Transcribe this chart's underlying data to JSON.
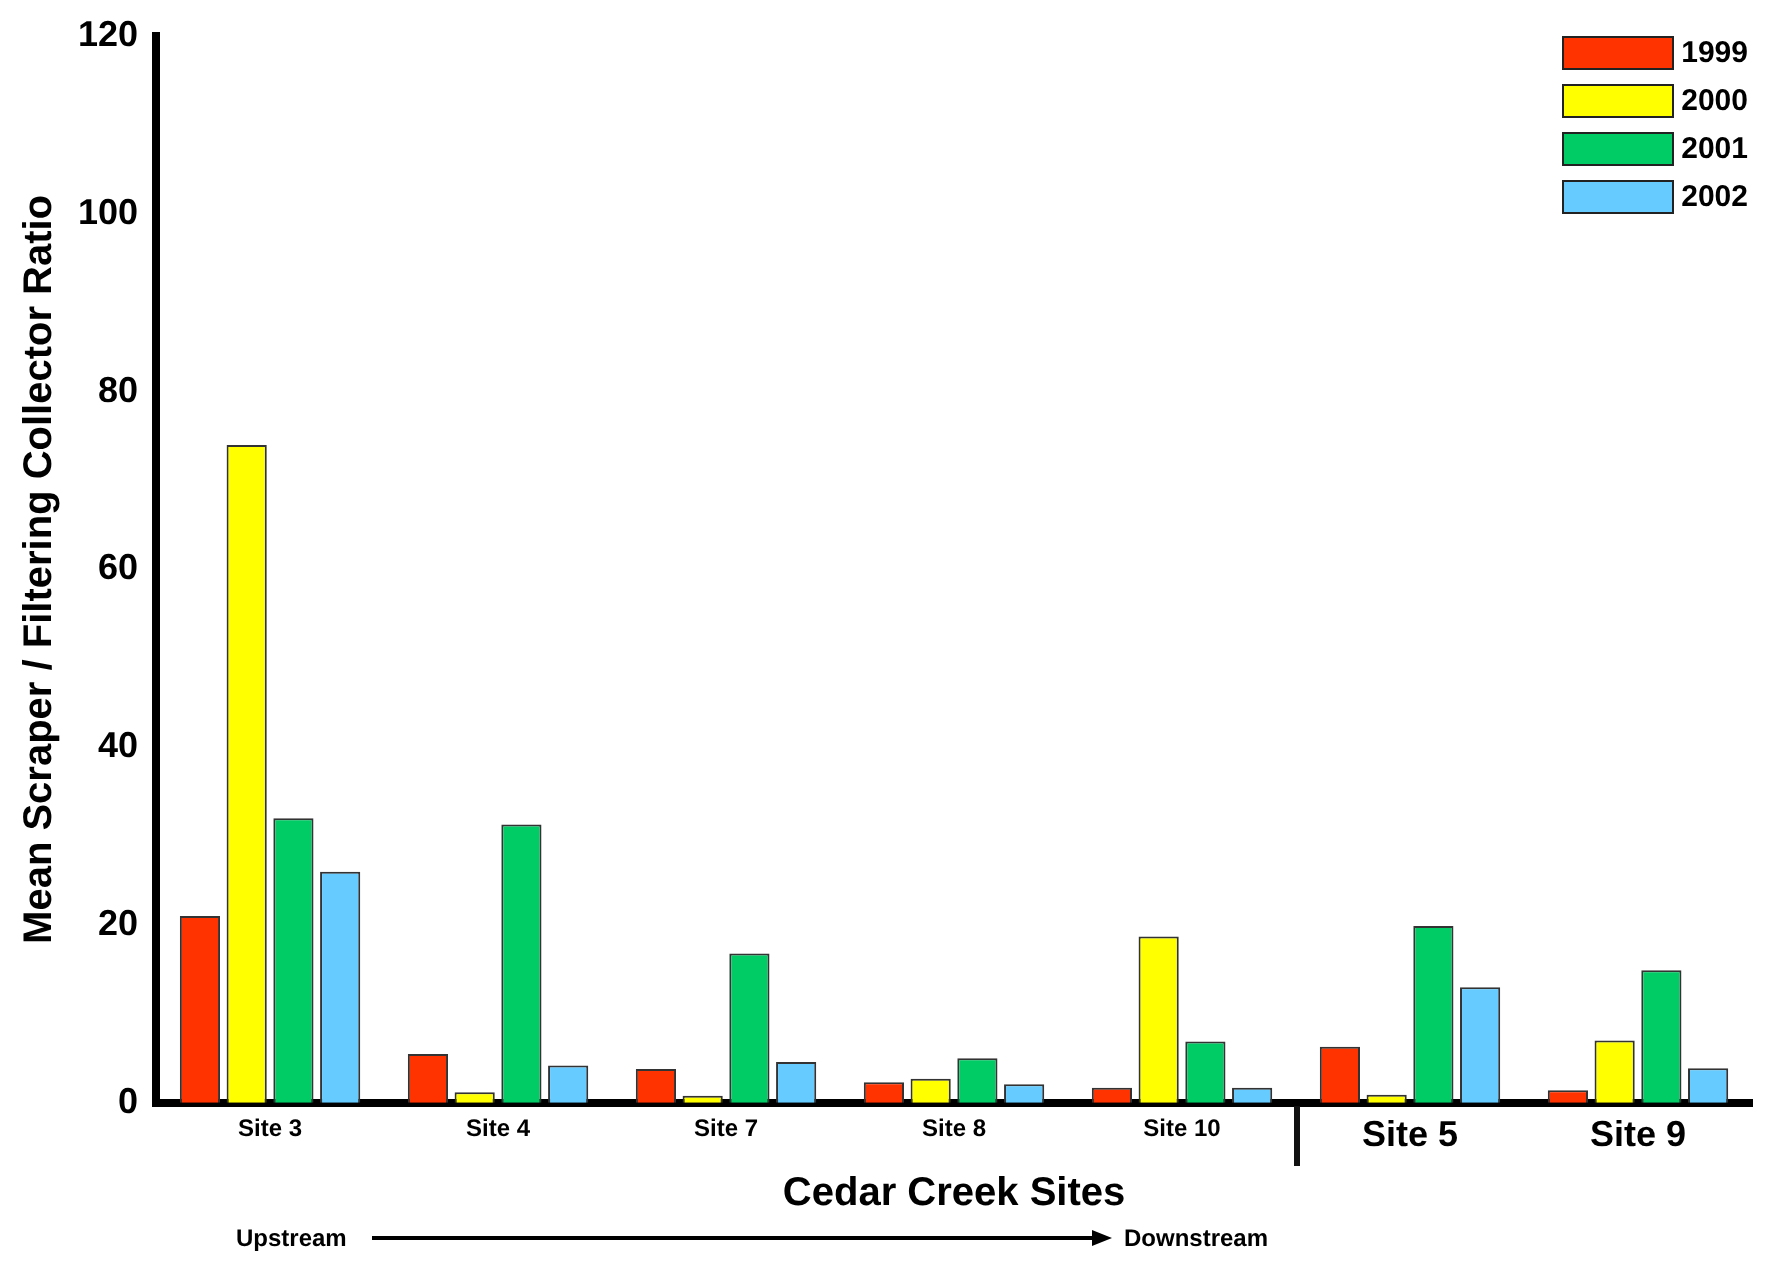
{
  "chart_data": {
    "type": "bar",
    "xlabel": "Cedar Creek Sites",
    "ylabel": "Mean Scraper / Filtering Collector Ratio",
    "categories": [
      "Site 3",
      "Site 4",
      "Site 7",
      "Site 8",
      "Site 10",
      "Site 5",
      "Site 9"
    ],
    "series": [
      {
        "name": "1999",
        "color": "#ff3300",
        "values": [
          21,
          5.5,
          3.8,
          2.3,
          1.7,
          6.3,
          1.4
        ]
      },
      {
        "name": "2000",
        "color": "#ffff00",
        "values": [
          74,
          1.2,
          0.8,
          2.7,
          18.7,
          0.9,
          7
        ]
      },
      {
        "name": "2001",
        "color": "#00cc66",
        "values": [
          32,
          31.3,
          16.8,
          5,
          6.9,
          19.9,
          14.9
        ]
      },
      {
        "name": "2002",
        "color": "#66ccff",
        "values": [
          26,
          4.2,
          4.6,
          2.1,
          1.7,
          13,
          3.9
        ]
      }
    ],
    "ylim": [
      0,
      120
    ],
    "yticks": [
      0,
      20,
      40,
      60,
      80,
      100,
      120
    ],
    "grid": false,
    "legend": "top right",
    "annotations": [
      "Upstream",
      "Downstream"
    ]
  }
}
